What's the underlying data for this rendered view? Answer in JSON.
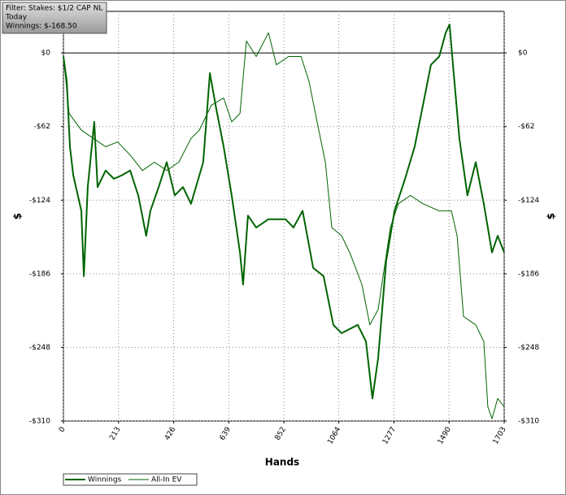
{
  "chart_data": {
    "type": "line",
    "annotations": [
      "Filter: Stakes: $1/2 CAP NL",
      "Today",
      "Winnings: $-168.50"
    ],
    "xlabel": "Hands",
    "ylabel": "$",
    "xlim": [
      0,
      1703
    ],
    "xticks": [
      0,
      213,
      426,
      639,
      852,
      1064,
      1277,
      1490,
      1703
    ],
    "ylim": [
      -310,
      35
    ],
    "yticks": [
      {
        "value": 0,
        "label": "$0"
      },
      {
        "value": -62,
        "label": "-$62"
      },
      {
        "value": -124,
        "label": "-$124"
      },
      {
        "value": -186,
        "label": "-$186"
      },
      {
        "value": -248,
        "label": "-$248"
      },
      {
        "value": -310,
        "label": "-$310"
      }
    ],
    "grid": true,
    "legend": "bottom-left",
    "series": [
      {
        "name": "Winnings",
        "color": "#006400",
        "width": 2,
        "x": [
          0,
          13,
          25,
          38,
          69,
          79,
          94,
          119,
          132,
          163,
          195,
          226,
          258,
          289,
          320,
          336,
          368,
          399,
          430,
          462,
          493,
          540,
          566,
          588,
          619,
          650,
          682,
          694,
          713,
          745,
          792,
          858,
          889,
          924,
          965,
          1005,
          1043,
          1075,
          1137,
          1169,
          1194,
          1216,
          1247,
          1279,
          1320,
          1357,
          1389,
          1420,
          1452,
          1477,
          1492,
          1508,
          1530,
          1561,
          1593,
          1624,
          1656,
          1678,
          1703
        ],
        "values": [
          -3,
          -24,
          -79,
          -103,
          -133,
          -188,
          -113,
          -58,
          -113,
          -99,
          -106,
          -103,
          -99,
          -120,
          -154,
          -133,
          -113,
          -92,
          -120,
          -113,
          -127,
          -92,
          -17,
          -44,
          -79,
          -120,
          -168,
          -195,
          -137,
          -147,
          -140,
          -140,
          -147,
          -133,
          -181,
          -188,
          -229,
          -236,
          -229,
          -243,
          -291,
          -257,
          -175,
          -133,
          -106,
          -79,
          -44,
          -10,
          -3,
          17,
          24,
          -17,
          -72,
          -120,
          -92,
          -127,
          -168,
          -154,
          -168
        ]
      },
      {
        "name": "All-In EV",
        "color": "#006400",
        "width": 1,
        "x": [
          0,
          22,
          69,
          116,
          163,
          210,
          258,
          305,
          352,
          399,
          446,
          493,
          525,
          572,
          619,
          650,
          682,
          707,
          745,
          792,
          823,
          870,
          918,
          949,
          980,
          1012,
          1037,
          1075,
          1106,
          1153,
          1184,
          1216,
          1263,
          1294,
          1341,
          1389,
          1452,
          1499,
          1521,
          1546,
          1593,
          1624,
          1640,
          1656,
          1678,
          1703
        ],
        "values": [
          -3,
          -51,
          -65,
          -72,
          -79,
          -75,
          -86,
          -99,
          -92,
          -99,
          -92,
          -72,
          -65,
          -44,
          -38,
          -58,
          -51,
          10,
          -3,
          17,
          -10,
          -3,
          -3,
          -24,
          -58,
          -92,
          -147,
          -154,
          -168,
          -195,
          -229,
          -216,
          -147,
          -127,
          -120,
          -127,
          -133,
          -133,
          -154,
          -222,
          -229,
          -243,
          -298,
          -308,
          -291,
          -298
        ]
      }
    ]
  }
}
